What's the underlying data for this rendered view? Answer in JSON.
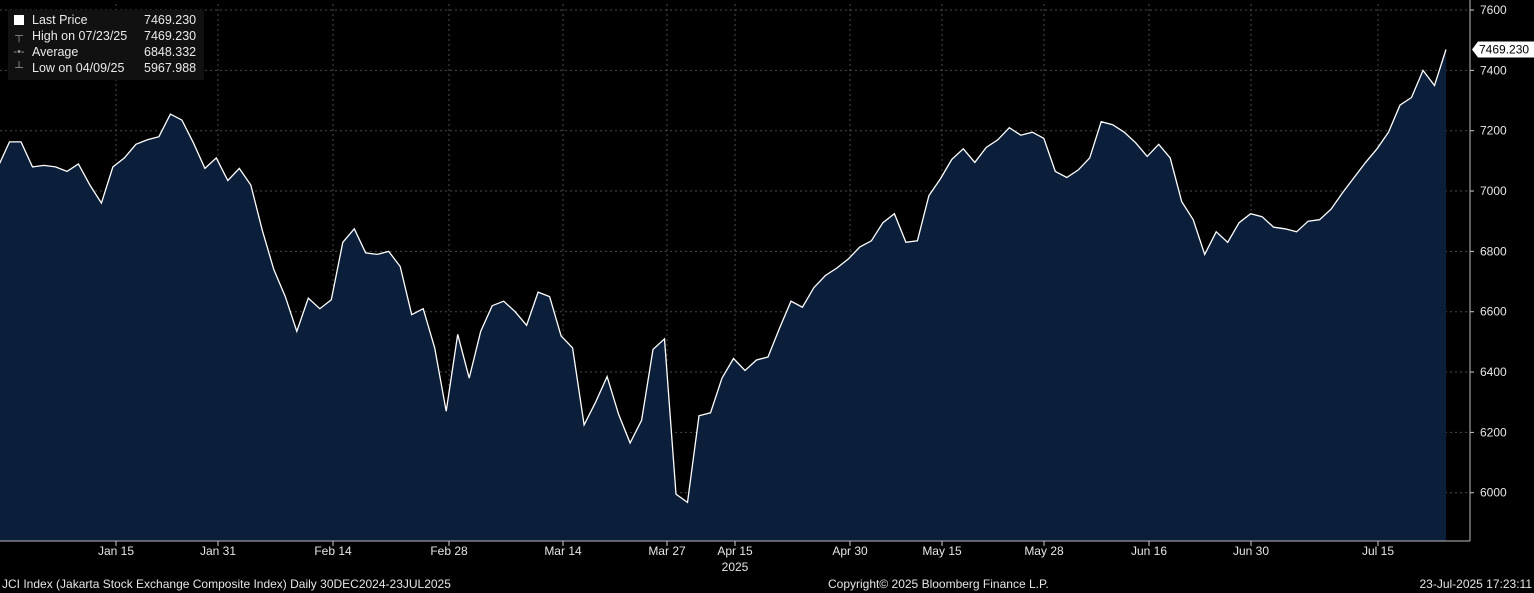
{
  "legend": {
    "items": [
      {
        "label": "Last Price",
        "value": "7469.230",
        "icon": "white-square-icon"
      },
      {
        "label": "High on 07/23/25",
        "value": "7469.230",
        "icon": "high-marker-icon"
      },
      {
        "label": "Average",
        "value": "6848.332",
        "icon": "average-line-icon"
      },
      {
        "label": "Low on 04/09/25",
        "value": "5967.988",
        "icon": "low-marker-icon"
      }
    ]
  },
  "last_price_tag": "7469.230",
  "footer": {
    "left": "JCI Index (Jakarta Stock Exchange Composite Index)  Daily 30DEC2024-23JUL2025",
    "center": "Copyright© 2025 Bloomberg Finance L.P.",
    "right": "23-Jul-2025 17:23:11"
  },
  "colors": {
    "background": "#000000",
    "area_fill": "#0b1f3a",
    "line": "#ffffff",
    "grid": "#555555"
  },
  "chart_data": {
    "type": "area",
    "title": "",
    "xlabel": "",
    "ylabel": "",
    "ylim": [
      5840,
      7620
    ],
    "y_ticks": [
      6000,
      6200,
      6400,
      6600,
      6800,
      7000,
      7200,
      7400,
      7600
    ],
    "x_tick_labels": [
      "Jan 15",
      "Jan 31",
      "Feb 14",
      "Feb 28",
      "Mar 14",
      "Mar 27",
      "Apr 15",
      "Apr 30",
      "May 15",
      "May 28",
      "Jun 16",
      "Jun 30",
      "Jul 15"
    ],
    "year_label": "2025",
    "axis_position": "right",
    "grid": true,
    "series": [
      {
        "name": "Last Price",
        "values": [
          7080,
          7163,
          7163,
          7080,
          7085,
          7080,
          7065,
          7090,
          7020,
          6960,
          7080,
          7110,
          7155,
          7170,
          7180,
          7255,
          7235,
          7160,
          7075,
          7110,
          7035,
          7075,
          7020,
          6870,
          6740,
          6650,
          6535,
          6645,
          6610,
          6640,
          6830,
          6875,
          6795,
          6790,
          6800,
          6750,
          6590,
          6610,
          6480,
          6270,
          6525,
          6380,
          6535,
          6620,
          6635,
          6600,
          6555,
          6665,
          6650,
          6520,
          6480,
          6225,
          6300,
          6385,
          6260,
          6165,
          6240,
          6475,
          6510,
          5995,
          5968,
          6255,
          6265,
          6380,
          6445,
          6405,
          6440,
          6450,
          6545,
          6635,
          6615,
          6680,
          6720,
          6745,
          6775,
          6815,
          6835,
          6895,
          6925,
          6830,
          6835,
          6985,
          7040,
          7105,
          7140,
          7095,
          7145,
          7170,
          7210,
          7185,
          7195,
          7175,
          7065,
          7045,
          7070,
          7110,
          7230,
          7220,
          7195,
          7160,
          7115,
          7155,
          7110,
          6965,
          6905,
          6790,
          6865,
          6830,
          6895,
          6925,
          6915,
          6880,
          6875,
          6865,
          6900,
          6905,
          6940,
          6995,
          7045,
          7095,
          7140,
          7195,
          7285,
          7310,
          7400,
          7350,
          7469.23
        ]
      }
    ]
  }
}
